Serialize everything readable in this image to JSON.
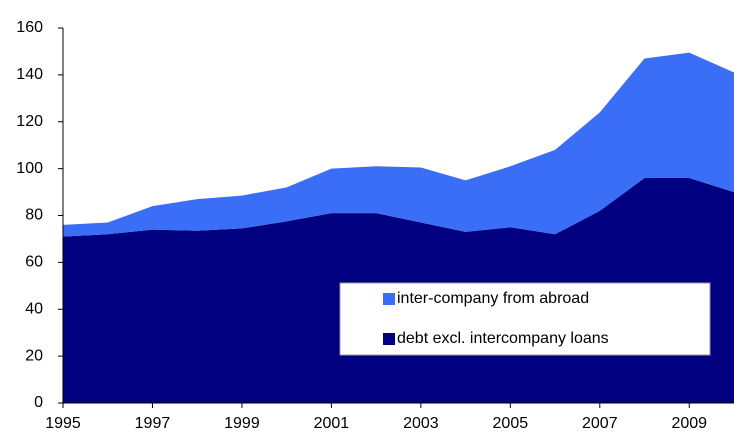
{
  "chart_data": {
    "type": "stacked-area",
    "x": [
      1995,
      1996,
      1997,
      1998,
      1999,
      2000,
      2001,
      2002,
      2003,
      2004,
      2005,
      2006,
      2007,
      2008,
      2009,
      2010
    ],
    "series": [
      {
        "name": "debt excl. intercompany loans",
        "color": "#000080",
        "values": [
          71,
          72,
          74,
          73.5,
          74.5,
          77.5,
          81,
          81,
          77,
          73,
          75,
          72,
          82,
          96,
          96,
          90
        ]
      },
      {
        "name": "inter-company from abroad",
        "color": "#3a6ef6",
        "values": [
          5,
          5,
          10,
          13.5,
          14,
          14.5,
          19,
          20,
          23.5,
          22,
          26,
          36,
          42,
          51,
          53.5,
          51
        ]
      }
    ],
    "xlim": [
      1995,
      2010
    ],
    "xticks": [
      1995,
      1997,
      1999,
      2001,
      2003,
      2005,
      2007,
      2009
    ],
    "ylim": [
      0,
      160
    ],
    "yticks": [
      0,
      20,
      40,
      60,
      80,
      100,
      120,
      140,
      160
    ],
    "grid": false,
    "legend": "lower right"
  }
}
